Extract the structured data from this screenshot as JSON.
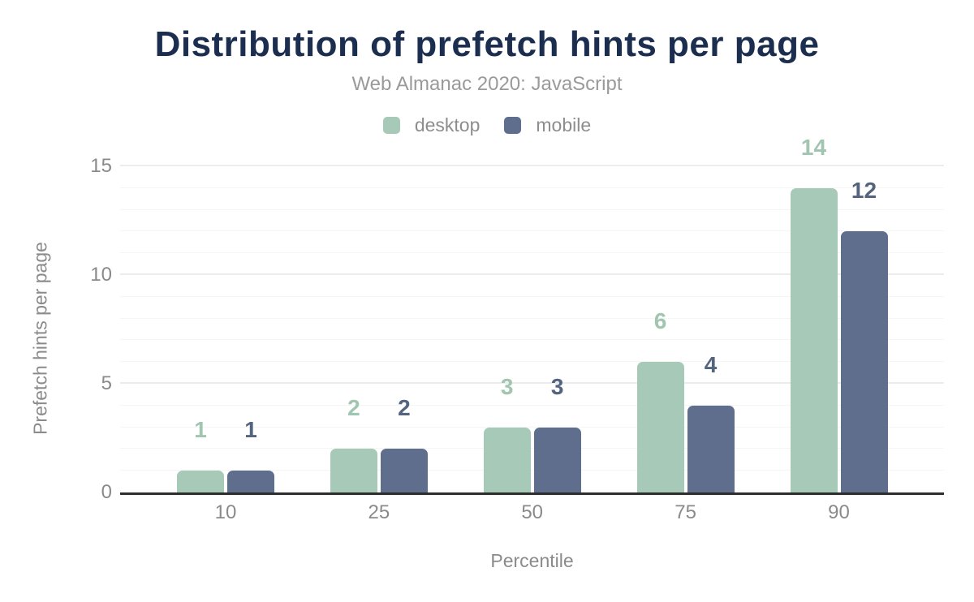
{
  "page": {
    "background": "#ffffff"
  },
  "chart_data": {
    "type": "bar",
    "title": "Distribution of prefetch hints per page",
    "subtitle": "Web Almanac 2020: JavaScript",
    "categories": [
      "10",
      "25",
      "50",
      "75",
      "90"
    ],
    "series": [
      {
        "name": "desktop",
        "color": "#a7c9b7",
        "label_color": "#a0c5b0",
        "values": [
          1,
          2,
          3,
          6,
          14
        ]
      },
      {
        "name": "mobile",
        "color": "#5e6e8c",
        "label_color": "#54647f",
        "values": [
          1,
          2,
          3,
          4,
          12
        ]
      }
    ],
    "xlabel": "Percentile",
    "ylabel": "Prefetch hints per page",
    "ylim": [
      0,
      15
    ],
    "yticks": [
      0,
      5,
      10,
      15
    ],
    "y_minor_step": 1,
    "legend_position": "top",
    "grid": "horizontal",
    "data_labels": true,
    "palette": {
      "title_color": "#1c2e4f",
      "subtitle_color": "#9a9a9a",
      "legend_text_color": "#8d8d8d",
      "tick_color": "#8a8a8a",
      "axis_title_color": "#8b8b8b",
      "axis_line_color": "#2e2e2e",
      "grid_major_color": "#ececec",
      "grid_minor_color": "#f5f5f5"
    }
  }
}
